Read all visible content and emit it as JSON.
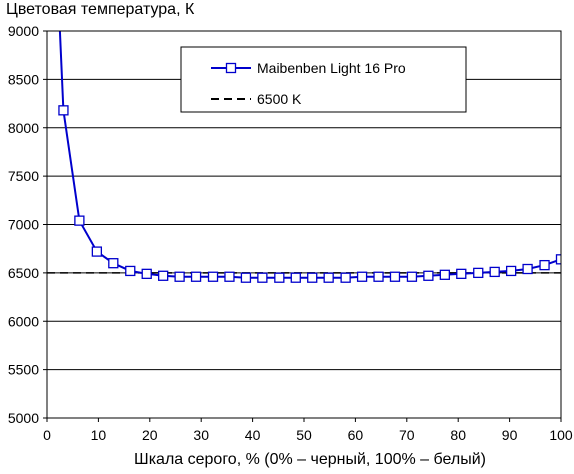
{
  "chart_data": {
    "type": "line",
    "title": "",
    "ylabel": "Цветовая температура, К",
    "xlabel": "Шкала серого, % (0% – черный, 100% – белый)",
    "xlim": [
      0,
      100
    ],
    "ylim": [
      5000,
      9000
    ],
    "xticks": [
      0,
      10,
      20,
      30,
      40,
      50,
      60,
      70,
      80,
      90,
      100
    ],
    "yticks": [
      5000,
      5500,
      6000,
      6500,
      7000,
      7500,
      8000,
      8500,
      9000
    ],
    "grid": "horizontal",
    "legend_position": "top-center",
    "series": [
      {
        "name": "Maibenben Light 16 Pro",
        "color": "#0000cc",
        "marker": "square",
        "x": [
          2.5,
          3.2,
          6.3,
          9.7,
          12.9,
          16.2,
          19.4,
          22.6,
          25.8,
          29.0,
          32.3,
          35.5,
          38.7,
          41.9,
          45.2,
          48.4,
          51.6,
          54.8,
          58.1,
          61.3,
          64.5,
          67.7,
          71.0,
          74.2,
          77.4,
          80.6,
          83.9,
          87.1,
          90.3,
          93.5,
          96.8,
          100
        ],
        "y": [
          9000,
          8180,
          7040,
          6720,
          6600,
          6520,
          6490,
          6470,
          6460,
          6460,
          6460,
          6460,
          6450,
          6450,
          6450,
          6450,
          6450,
          6450,
          6450,
          6460,
          6460,
          6460,
          6460,
          6470,
          6480,
          6490,
          6500,
          6510,
          6520,
          6540,
          6580,
          6640
        ]
      },
      {
        "name": "6500 K",
        "color": "#000000",
        "dash": "dashed",
        "x": [
          0,
          100
        ],
        "y": [
          6500,
          6500
        ]
      }
    ]
  }
}
